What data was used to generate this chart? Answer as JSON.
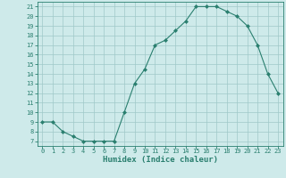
{
  "x": [
    0,
    1,
    2,
    3,
    4,
    5,
    6,
    7,
    8,
    9,
    10,
    11,
    12,
    13,
    14,
    15,
    16,
    17,
    18,
    19,
    20,
    21,
    22,
    23
  ],
  "y": [
    9,
    9,
    8,
    7.5,
    7,
    7,
    7,
    7,
    10,
    13,
    14.5,
    17,
    17.5,
    18.5,
    19.5,
    21,
    21,
    21,
    20.5,
    20,
    19,
    17,
    14,
    12
  ],
  "line_color": "#2a7f6f",
  "marker": "D",
  "marker_size": 2,
  "bg_color": "#ceeaea",
  "grid_color": "#a0c8c8",
  "xlabel": "Humidex (Indice chaleur)",
  "xlim": [
    -0.5,
    23.5
  ],
  "ylim": [
    6.5,
    21.5
  ],
  "yticks": [
    7,
    8,
    9,
    10,
    11,
    12,
    13,
    14,
    15,
    16,
    17,
    18,
    19,
    20,
    21
  ],
  "xticks": [
    0,
    1,
    2,
    3,
    4,
    5,
    6,
    7,
    8,
    9,
    10,
    11,
    12,
    13,
    14,
    15,
    16,
    17,
    18,
    19,
    20,
    21,
    22,
    23
  ],
  "tick_label_fontsize": 5,
  "xlabel_fontsize": 6.5,
  "tick_color": "#2a7f6f",
  "axis_color": "#2a7f6f",
  "linewidth": 0.8
}
